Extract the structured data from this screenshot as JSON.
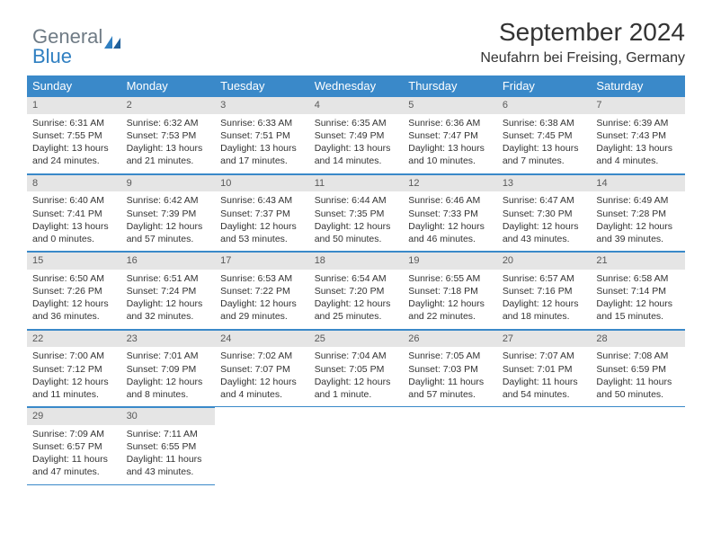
{
  "brand": {
    "part1": "General",
    "part2": "Blue"
  },
  "title": "September 2024",
  "location": "Neufahrn bei Freising, Germany",
  "colors": {
    "header_bg": "#3a89c9",
    "header_text": "#ffffff",
    "daynum_bg": "#e5e5e5",
    "daynum_text": "#595959",
    "border": "#3a89c9",
    "body_text": "#333333",
    "brand_gray": "#6f7b85",
    "brand_blue": "#2f7fc1",
    "page_bg": "#ffffff"
  },
  "typography": {
    "title_fontsize": 28,
    "subtitle_fontsize": 16,
    "dayheader_fontsize": 13,
    "daynum_fontsize": 11,
    "cell_fontsize": 10.5
  },
  "day_headers": [
    "Sunday",
    "Monday",
    "Tuesday",
    "Wednesday",
    "Thursday",
    "Friday",
    "Saturday"
  ],
  "weeks": [
    [
      {
        "n": "1",
        "sunrise": "Sunrise: 6:31 AM",
        "sunset": "Sunset: 7:55 PM",
        "d1": "Daylight: 13 hours",
        "d2": "and 24 minutes."
      },
      {
        "n": "2",
        "sunrise": "Sunrise: 6:32 AM",
        "sunset": "Sunset: 7:53 PM",
        "d1": "Daylight: 13 hours",
        "d2": "and 21 minutes."
      },
      {
        "n": "3",
        "sunrise": "Sunrise: 6:33 AM",
        "sunset": "Sunset: 7:51 PM",
        "d1": "Daylight: 13 hours",
        "d2": "and 17 minutes."
      },
      {
        "n": "4",
        "sunrise": "Sunrise: 6:35 AM",
        "sunset": "Sunset: 7:49 PM",
        "d1": "Daylight: 13 hours",
        "d2": "and 14 minutes."
      },
      {
        "n": "5",
        "sunrise": "Sunrise: 6:36 AM",
        "sunset": "Sunset: 7:47 PM",
        "d1": "Daylight: 13 hours",
        "d2": "and 10 minutes."
      },
      {
        "n": "6",
        "sunrise": "Sunrise: 6:38 AM",
        "sunset": "Sunset: 7:45 PM",
        "d1": "Daylight: 13 hours",
        "d2": "and 7 minutes."
      },
      {
        "n": "7",
        "sunrise": "Sunrise: 6:39 AM",
        "sunset": "Sunset: 7:43 PM",
        "d1": "Daylight: 13 hours",
        "d2": "and 4 minutes."
      }
    ],
    [
      {
        "n": "8",
        "sunrise": "Sunrise: 6:40 AM",
        "sunset": "Sunset: 7:41 PM",
        "d1": "Daylight: 13 hours",
        "d2": "and 0 minutes."
      },
      {
        "n": "9",
        "sunrise": "Sunrise: 6:42 AM",
        "sunset": "Sunset: 7:39 PM",
        "d1": "Daylight: 12 hours",
        "d2": "and 57 minutes."
      },
      {
        "n": "10",
        "sunrise": "Sunrise: 6:43 AM",
        "sunset": "Sunset: 7:37 PM",
        "d1": "Daylight: 12 hours",
        "d2": "and 53 minutes."
      },
      {
        "n": "11",
        "sunrise": "Sunrise: 6:44 AM",
        "sunset": "Sunset: 7:35 PM",
        "d1": "Daylight: 12 hours",
        "d2": "and 50 minutes."
      },
      {
        "n": "12",
        "sunrise": "Sunrise: 6:46 AM",
        "sunset": "Sunset: 7:33 PM",
        "d1": "Daylight: 12 hours",
        "d2": "and 46 minutes."
      },
      {
        "n": "13",
        "sunrise": "Sunrise: 6:47 AM",
        "sunset": "Sunset: 7:30 PM",
        "d1": "Daylight: 12 hours",
        "d2": "and 43 minutes."
      },
      {
        "n": "14",
        "sunrise": "Sunrise: 6:49 AM",
        "sunset": "Sunset: 7:28 PM",
        "d1": "Daylight: 12 hours",
        "d2": "and 39 minutes."
      }
    ],
    [
      {
        "n": "15",
        "sunrise": "Sunrise: 6:50 AM",
        "sunset": "Sunset: 7:26 PM",
        "d1": "Daylight: 12 hours",
        "d2": "and 36 minutes."
      },
      {
        "n": "16",
        "sunrise": "Sunrise: 6:51 AM",
        "sunset": "Sunset: 7:24 PM",
        "d1": "Daylight: 12 hours",
        "d2": "and 32 minutes."
      },
      {
        "n": "17",
        "sunrise": "Sunrise: 6:53 AM",
        "sunset": "Sunset: 7:22 PM",
        "d1": "Daylight: 12 hours",
        "d2": "and 29 minutes."
      },
      {
        "n": "18",
        "sunrise": "Sunrise: 6:54 AM",
        "sunset": "Sunset: 7:20 PM",
        "d1": "Daylight: 12 hours",
        "d2": "and 25 minutes."
      },
      {
        "n": "19",
        "sunrise": "Sunrise: 6:55 AM",
        "sunset": "Sunset: 7:18 PM",
        "d1": "Daylight: 12 hours",
        "d2": "and 22 minutes."
      },
      {
        "n": "20",
        "sunrise": "Sunrise: 6:57 AM",
        "sunset": "Sunset: 7:16 PM",
        "d1": "Daylight: 12 hours",
        "d2": "and 18 minutes."
      },
      {
        "n": "21",
        "sunrise": "Sunrise: 6:58 AM",
        "sunset": "Sunset: 7:14 PM",
        "d1": "Daylight: 12 hours",
        "d2": "and 15 minutes."
      }
    ],
    [
      {
        "n": "22",
        "sunrise": "Sunrise: 7:00 AM",
        "sunset": "Sunset: 7:12 PM",
        "d1": "Daylight: 12 hours",
        "d2": "and 11 minutes."
      },
      {
        "n": "23",
        "sunrise": "Sunrise: 7:01 AM",
        "sunset": "Sunset: 7:09 PM",
        "d1": "Daylight: 12 hours",
        "d2": "and 8 minutes."
      },
      {
        "n": "24",
        "sunrise": "Sunrise: 7:02 AM",
        "sunset": "Sunset: 7:07 PM",
        "d1": "Daylight: 12 hours",
        "d2": "and 4 minutes."
      },
      {
        "n": "25",
        "sunrise": "Sunrise: 7:04 AM",
        "sunset": "Sunset: 7:05 PM",
        "d1": "Daylight: 12 hours",
        "d2": "and 1 minute."
      },
      {
        "n": "26",
        "sunrise": "Sunrise: 7:05 AM",
        "sunset": "Sunset: 7:03 PM",
        "d1": "Daylight: 11 hours",
        "d2": "and 57 minutes."
      },
      {
        "n": "27",
        "sunrise": "Sunrise: 7:07 AM",
        "sunset": "Sunset: 7:01 PM",
        "d1": "Daylight: 11 hours",
        "d2": "and 54 minutes."
      },
      {
        "n": "28",
        "sunrise": "Sunrise: 7:08 AM",
        "sunset": "Sunset: 6:59 PM",
        "d1": "Daylight: 11 hours",
        "d2": "and 50 minutes."
      }
    ],
    [
      {
        "n": "29",
        "sunrise": "Sunrise: 7:09 AM",
        "sunset": "Sunset: 6:57 PM",
        "d1": "Daylight: 11 hours",
        "d2": "and 47 minutes."
      },
      {
        "n": "30",
        "sunrise": "Sunrise: 7:11 AM",
        "sunset": "Sunset: 6:55 PM",
        "d1": "Daylight: 11 hours",
        "d2": "and 43 minutes."
      },
      null,
      null,
      null,
      null,
      null
    ]
  ]
}
